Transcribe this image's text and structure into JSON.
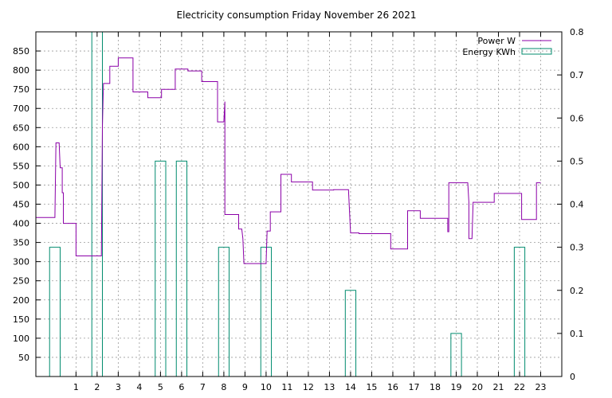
{
  "chart_data": {
    "type": "line",
    "title": "Electricity consumption Friday November 26 2021",
    "x_ticks": [
      1,
      2,
      3,
      4,
      5,
      6,
      7,
      8,
      9,
      10,
      11,
      12,
      13,
      14,
      15,
      16,
      17,
      18,
      19,
      20,
      21,
      22,
      23
    ],
    "xlim": [
      -0.9,
      24.0
    ],
    "y_left": {
      "ticks": [
        50,
        100,
        150,
        200,
        250,
        300,
        350,
        400,
        450,
        500,
        550,
        600,
        650,
        700,
        750,
        800,
        850
      ],
      "ylim": [
        0,
        900
      ]
    },
    "y_right": {
      "ticks": [
        0,
        0.1,
        0.2,
        0.3,
        0.4,
        0.5,
        0.6,
        0.7,
        0.8
      ],
      "ylim": [
        0,
        0.8
      ]
    },
    "grid": true,
    "legend_position": "top-right",
    "series": [
      {
        "name": "Power W",
        "axis": "left",
        "type": "step-line",
        "color": "#8b00a8",
        "points": [
          [
            -0.9,
            415
          ],
          [
            0.0,
            415
          ],
          [
            0.05,
            610
          ],
          [
            0.2,
            610
          ],
          [
            0.25,
            545
          ],
          [
            0.35,
            545
          ],
          [
            0.35,
            480
          ],
          [
            0.4,
            480
          ],
          [
            0.4,
            400
          ],
          [
            1.0,
            400
          ],
          [
            1.0,
            315
          ],
          [
            2.2,
            315
          ],
          [
            2.25,
            650
          ],
          [
            2.3,
            765
          ],
          [
            2.6,
            765
          ],
          [
            2.6,
            810
          ],
          [
            3.0,
            810
          ],
          [
            3.0,
            832
          ],
          [
            3.7,
            832
          ],
          [
            3.7,
            743
          ],
          [
            4.4,
            743
          ],
          [
            4.4,
            728
          ],
          [
            5.05,
            728
          ],
          [
            5.05,
            750
          ],
          [
            5.7,
            750
          ],
          [
            5.7,
            803
          ],
          [
            6.3,
            803
          ],
          [
            6.3,
            798
          ],
          [
            6.95,
            798
          ],
          [
            6.95,
            770
          ],
          [
            7.7,
            770
          ],
          [
            7.7,
            665
          ],
          [
            8.0,
            665
          ],
          [
            8.05,
            718
          ],
          [
            8.05,
            423
          ],
          [
            8.7,
            423
          ],
          [
            8.7,
            385
          ],
          [
            8.85,
            385
          ],
          [
            8.9,
            360
          ],
          [
            8.95,
            295
          ],
          [
            10.0,
            295
          ],
          [
            10.05,
            380
          ],
          [
            10.2,
            380
          ],
          [
            10.2,
            430
          ],
          [
            10.7,
            430
          ],
          [
            10.7,
            528
          ],
          [
            11.2,
            528
          ],
          [
            11.2,
            508
          ],
          [
            12.2,
            508
          ],
          [
            12.2,
            487
          ],
          [
            13.2,
            487
          ],
          [
            13.2,
            488
          ],
          [
            13.9,
            488
          ],
          [
            14.0,
            375
          ],
          [
            14.4,
            375
          ],
          [
            14.4,
            373
          ],
          [
            15.9,
            373
          ],
          [
            15.9,
            333
          ],
          [
            16.7,
            333
          ],
          [
            16.7,
            433
          ],
          [
            17.3,
            433
          ],
          [
            17.3,
            413
          ],
          [
            18.6,
            413
          ],
          [
            18.6,
            378
          ],
          [
            18.65,
            378
          ],
          [
            18.65,
            506
          ],
          [
            19.55,
            506
          ],
          [
            19.6,
            455
          ],
          [
            19.6,
            360
          ],
          [
            19.75,
            360
          ],
          [
            19.8,
            455
          ],
          [
            20.8,
            455
          ],
          [
            20.8,
            478
          ],
          [
            22.1,
            478
          ],
          [
            22.1,
            410
          ],
          [
            22.8,
            410
          ],
          [
            22.8,
            506
          ],
          [
            23.0,
            506
          ]
        ]
      },
      {
        "name": "Energy KWh",
        "axis": "right",
        "type": "bar",
        "color": "#008b6e",
        "bars": [
          {
            "x": 0,
            "value": 0.3
          },
          {
            "x": 2,
            "value": 0.8
          },
          {
            "x": 5,
            "value": 0.5
          },
          {
            "x": 6,
            "value": 0.5
          },
          {
            "x": 8,
            "value": 0.3
          },
          {
            "x": 10,
            "value": 0.3
          },
          {
            "x": 14,
            "value": 0.2
          },
          {
            "x": 19,
            "value": 0.1
          },
          {
            "x": 22,
            "value": 0.3
          }
        ]
      }
    ]
  }
}
